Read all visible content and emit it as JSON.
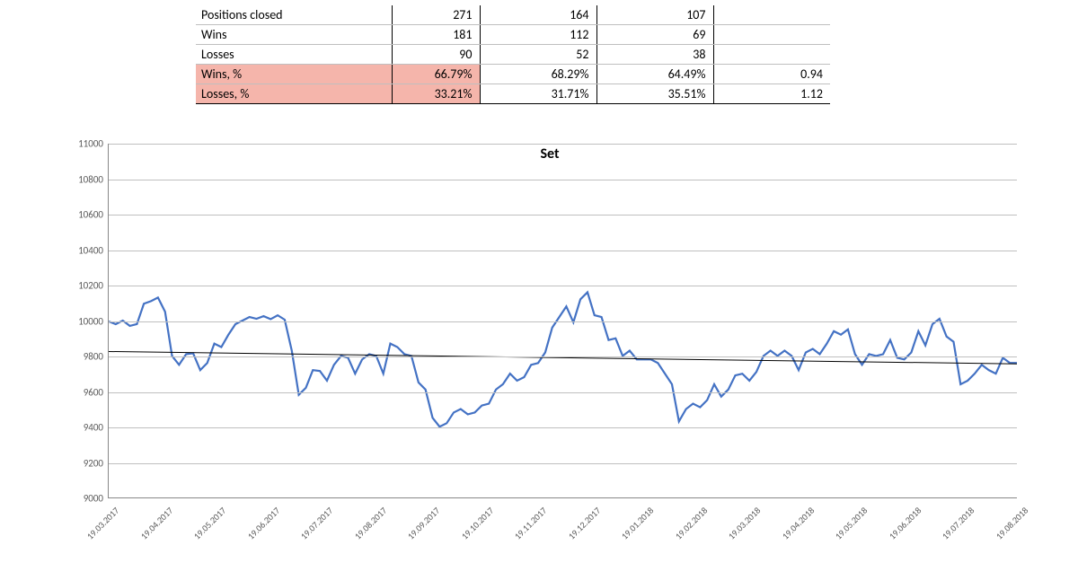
{
  "table": {
    "columns": 4,
    "rows": [
      {
        "label": "Positions closed",
        "v1": "271",
        "v2": "164",
        "v3": "107",
        "v4": "",
        "highlight": false
      },
      {
        "label": "Wins",
        "v1": "181",
        "v2": "112",
        "v3": "69",
        "v4": "",
        "highlight": false
      },
      {
        "label": "Losses",
        "v1": "90",
        "v2": "52",
        "v3": "38",
        "v4": "",
        "highlight": false
      },
      {
        "label": "Wins, %",
        "v1": "66.79%",
        "v2": "68.29%",
        "v3": "64.49%",
        "v4": "0.94",
        "highlight": true
      },
      {
        "label": "Losses, %",
        "v1": "33.21%",
        "v2": "31.71%",
        "v3": "35.51%",
        "v4": "1.12",
        "highlight": true
      }
    ],
    "highlight_color": "#f5b5ab",
    "border_color": "#000000",
    "grid_color": "#bfbfbf",
    "font_size": 14
  },
  "chart": {
    "type": "line",
    "title": "Set",
    "title_fontsize": 16,
    "title_fontweight": "bold",
    "background_color": "#ffffff",
    "grid_color": "#bfbfbf",
    "axis_color": "#888888",
    "tick_font_size": 11,
    "ylim": [
      9000,
      11000
    ],
    "ytick_step": 200,
    "series": {
      "color": "#4472c4",
      "width": 2.2,
      "values": [
        9995,
        9980,
        10000,
        9970,
        9980,
        10095,
        10110,
        10130,
        10050,
        9800,
        9750,
        9810,
        9815,
        9720,
        9760,
        9870,
        9850,
        9920,
        9980,
        10000,
        10020,
        10010,
        10025,
        10008,
        10030,
        10005,
        9830,
        9580,
        9620,
        9720,
        9715,
        9660,
        9750,
        9800,
        9790,
        9700,
        9780,
        9810,
        9800,
        9700,
        9870,
        9850,
        9810,
        9800,
        9650,
        9610,
        9450,
        9400,
        9420,
        9480,
        9500,
        9470,
        9480,
        9520,
        9530,
        9610,
        9640,
        9700,
        9660,
        9680,
        9750,
        9760,
        9820,
        9960,
        10020,
        10080,
        9990,
        10120,
        10160,
        10030,
        10020,
        9890,
        9900,
        9800,
        9830,
        9780,
        9780,
        9780,
        9760,
        9700,
        9640,
        9430,
        9500,
        9530,
        9510,
        9550,
        9640,
        9570,
        9610,
        9690,
        9700,
        9660,
        9710,
        9800,
        9830,
        9800,
        9830,
        9800,
        9720,
        9820,
        9840,
        9810,
        9870,
        9940,
        9920,
        9950,
        9810,
        9750,
        9810,
        9800,
        9810,
        9890,
        9790,
        9780,
        9820,
        9940,
        9860,
        9980,
        10010,
        9910,
        9880,
        9640,
        9660,
        9700,
        9750,
        9720,
        9700,
        9790,
        9760,
        9760
      ]
    },
    "trendline": {
      "color": "#000000",
      "width": 1,
      "y_start": 9825,
      "y_end": 9755
    },
    "x_categories": [
      "19.03.2017",
      "19.04.2017",
      "19.05.2017",
      "19.06.2017",
      "19.07.2017",
      "19.08.2017",
      "19.09.2017",
      "19.10.2017",
      "19.11.2017",
      "19.12.2017",
      "19.01.2018",
      "19.02.2018",
      "19.03.2018",
      "19.04.2018",
      "19.05.2018",
      "19.06.2018",
      "19.07.2018",
      "19.08.2018"
    ],
    "x_label_rotation_deg": -45
  }
}
